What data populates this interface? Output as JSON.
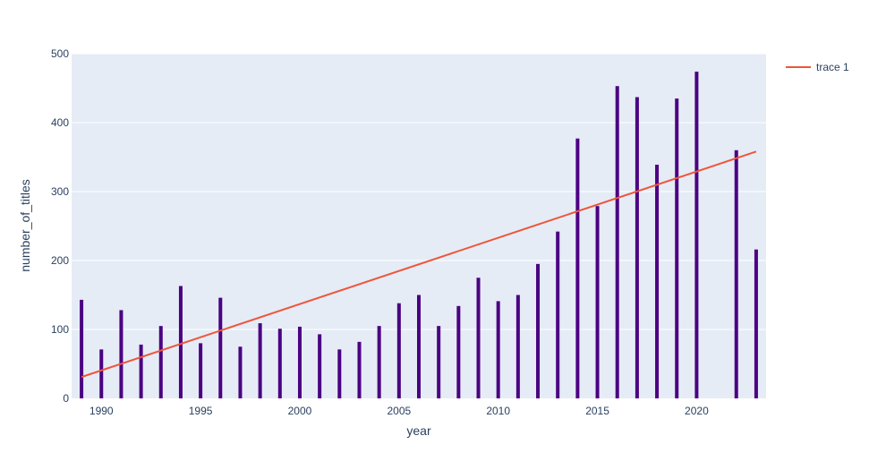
{
  "chart_data": {
    "type": "bar",
    "xlabel": "year",
    "ylabel": "number_of_titles",
    "xlim": [
      1988.5,
      2023.5
    ],
    "ylim": [
      0,
      500
    ],
    "grid": true,
    "legend_position": "top-right",
    "x_ticks": [
      1990,
      1995,
      2000,
      2005,
      2010,
      2015,
      2020
    ],
    "x_tick_labels": [
      "1990",
      "1995",
      "2000",
      "2005",
      "2010",
      "2015",
      "2020"
    ],
    "y_ticks": [
      0,
      100,
      200,
      300,
      400,
      500
    ],
    "y_tick_labels": [
      "0",
      "100",
      "200",
      "300",
      "400",
      "500"
    ],
    "bar_series": {
      "color": "#4b0082",
      "x": [
        1989,
        1990,
        1991,
        1992,
        1993,
        1994,
        1995,
        1996,
        1997,
        1998,
        1999,
        2000,
        2001,
        2002,
        2003,
        2004,
        2005,
        2006,
        2007,
        2008,
        2009,
        2010,
        2011,
        2012,
        2013,
        2014,
        2015,
        2016,
        2017,
        2018,
        2019,
        2020,
        2022,
        2023
      ],
      "values": [
        143,
        71,
        128,
        78,
        105,
        163,
        80,
        146,
        75,
        109,
        101,
        104,
        93,
        71,
        82,
        105,
        138,
        150,
        105,
        134,
        175,
        141,
        150,
        195,
        242,
        377,
        279,
        453,
        437,
        339,
        435,
        474,
        360,
        216
      ]
    },
    "series": [
      {
        "name": "trace 1",
        "type": "line",
        "color": "#ef553b",
        "x": [
          1989,
          2023
        ],
        "values": [
          31,
          358
        ]
      }
    ]
  }
}
